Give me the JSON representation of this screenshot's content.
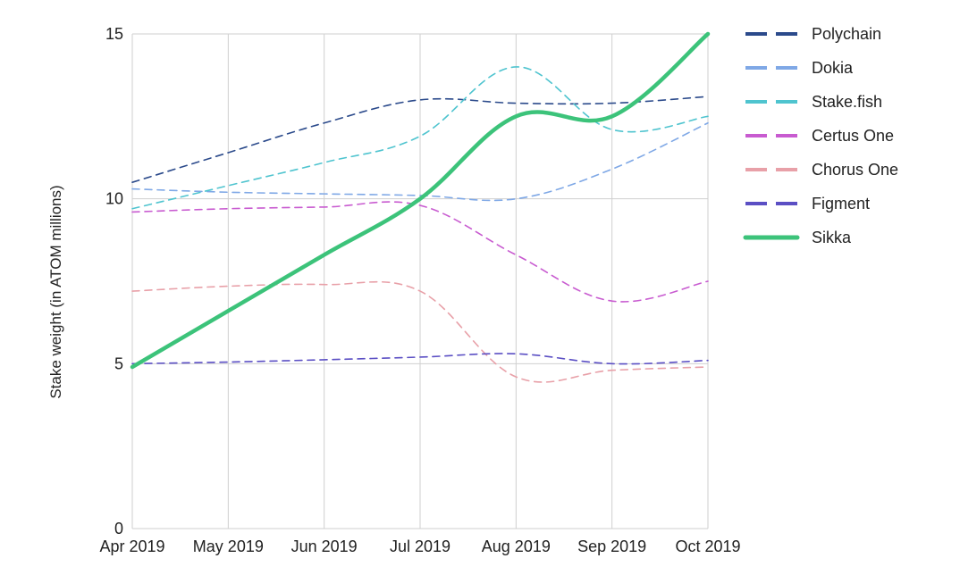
{
  "chart_data": {
    "type": "line",
    "title": "",
    "xlabel": "",
    "ylabel": "Stake weight (in ATOM millions)",
    "ylim": [
      0,
      15
    ],
    "grid": true,
    "legend_position": "right",
    "categories": [
      "Apr 2019",
      "May 2019",
      "Jun 2019",
      "Jul 2019",
      "Aug 2019",
      "Sep 2019",
      "Oct 2019"
    ],
    "y_ticks": [
      "0",
      "5",
      "10",
      "15"
    ],
    "series": [
      {
        "name": "Polychain",
        "color": "#2b4a8b",
        "style": "dashed",
        "values": [
          10.5,
          11.4,
          12.3,
          13.0,
          12.9,
          12.9,
          13.1
        ]
      },
      {
        "name": "Dokia",
        "color": "#7fa8e6",
        "style": "dashed",
        "values": [
          10.3,
          10.2,
          10.15,
          10.1,
          10.0,
          10.9,
          12.3
        ]
      },
      {
        "name": "Stake.fish",
        "color": "#4fc4cf",
        "style": "dashed",
        "values": [
          9.7,
          10.4,
          11.1,
          11.9,
          14.0,
          12.1,
          12.5
        ]
      },
      {
        "name": "Certus One",
        "color": "#c85bd0",
        "style": "dashed",
        "values": [
          9.6,
          9.7,
          9.75,
          9.8,
          8.3,
          6.9,
          7.5
        ]
      },
      {
        "name": "Chorus One",
        "color": "#e8a0a8",
        "style": "dashed",
        "values": [
          7.2,
          7.35,
          7.4,
          7.2,
          4.6,
          4.8,
          4.9
        ]
      },
      {
        "name": "Figment",
        "color": "#5b4fc4",
        "style": "dashed",
        "values": [
          5.0,
          5.05,
          5.12,
          5.2,
          5.3,
          5.0,
          5.1
        ]
      },
      {
        "name": "Sikka",
        "color": "#3cc37a",
        "style": "solid",
        "values": [
          4.9,
          6.6,
          8.3,
          10.0,
          12.5,
          12.5,
          15.0
        ]
      }
    ]
  }
}
